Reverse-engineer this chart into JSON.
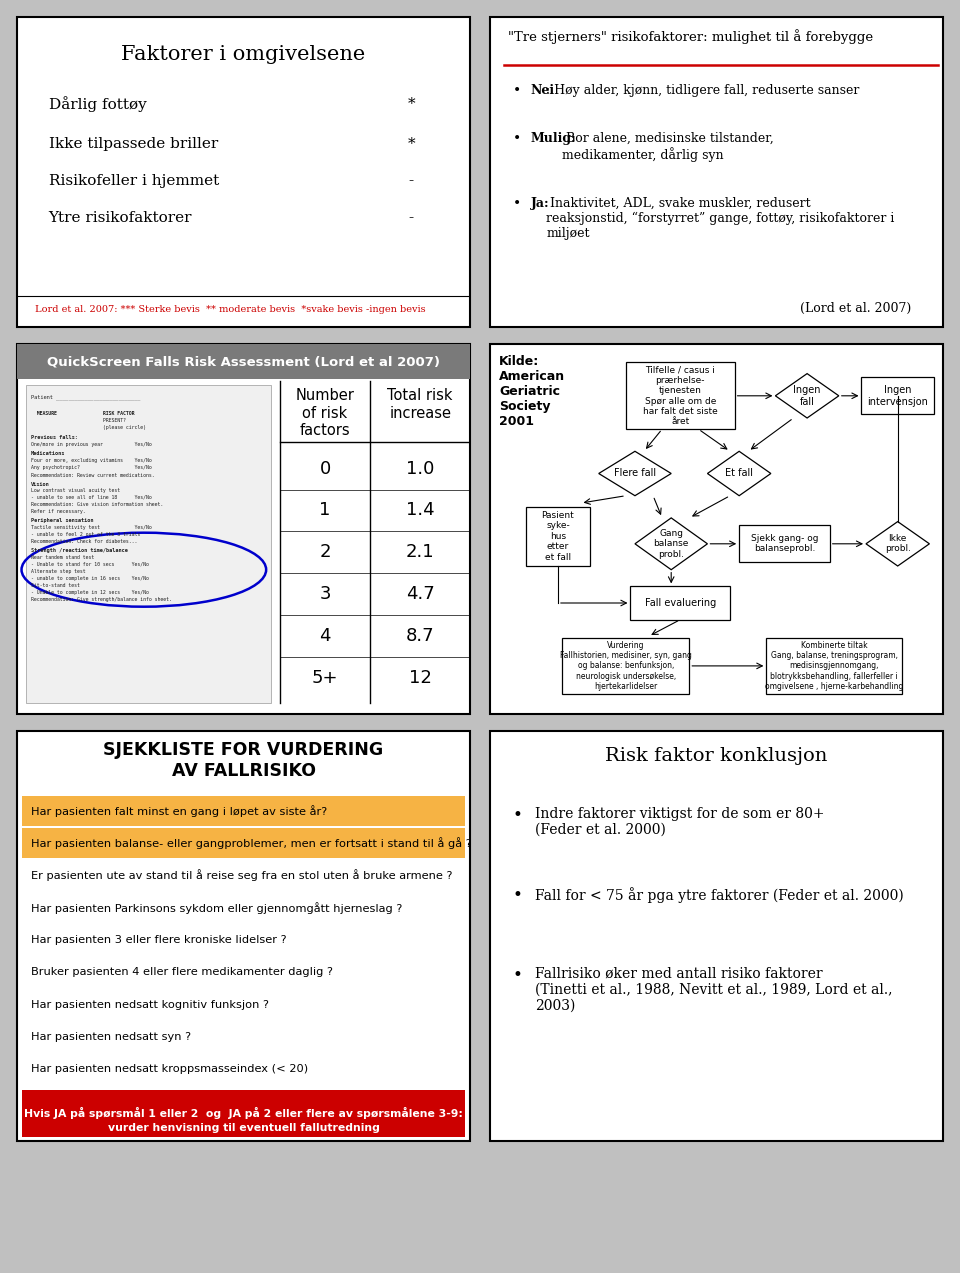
{
  "slide_bg": "#c0c0c0",
  "panel_bg": "#ffffff",
  "border_color": "#000000",
  "panel1_title": "Faktorer i omgivelsene",
  "panel1_items": [
    [
      "Dårlig fottøy",
      "*"
    ],
    [
      "Ikke tilpassede briller",
      "*"
    ],
    [
      "Risikofeller i hjemmet",
      "-"
    ],
    [
      "Ytre risikofaktorer",
      "-"
    ]
  ],
  "panel1_footer": "Lord et al. 2007: *** Sterke bevis  ** moderate bevis  *svake bevis -ingen bevis",
  "panel2_title": "\"Tre stjerners\" risikofaktorer: mulighet til å forebygge",
  "panel2_underline_color": "#cc0000",
  "panel2_bullets": [
    {
      "bold": "Nei",
      "rest": ": Høy alder, kjønn, tidligere fall, reduserte sanser"
    },
    {
      "bold": "Mulig:",
      "rest": " Bor alene, medisinske tilstander,\nmedikamenter, dårlig syn"
    },
    {
      "bold": "Ja:",
      "rest": " Inaktivitet, ADL, svake muskler, redusert\nreaksjonstid, “forstyrret” gange, fottøy, risikofaktorer i\nmiljøet"
    }
  ],
  "panel2_footer": "(Lord et al. 2007)",
  "panel3_title": "QuickScreen Falls Risk Assessment (Lord et al 2007)",
  "panel3_title_bg": "#7a7a7a",
  "panel3_col1_header": "Number\nof risk\nfactors",
  "panel3_col2_header": "Total risk\nincrease",
  "panel3_rows": [
    [
      "0",
      "1.0"
    ],
    [
      "1",
      "1.4"
    ],
    [
      "2",
      "2.1"
    ],
    [
      "3",
      "4.7"
    ],
    [
      "4",
      "8.7"
    ],
    [
      "5+",
      "12"
    ]
  ],
  "panel4_source": "Kilde:\nAmerican\nGeriatric\nSociety\n2001",
  "panel5_title": "SJEKKLISTE FOR VURDERING\nAV FALLRISIKO",
  "panel5_items": [
    {
      "text": "Har pasienten falt minst en gang i løpet av siste år?",
      "highlight": "orange"
    },
    {
      "text": "Har pasienten balanse- eller gangproblemer, men er fortsatt i stand til å gå ?",
      "highlight": "orange"
    },
    {
      "text": "Er pasienten ute av stand til å reise seg fra en stol uten å bruke armene ?",
      "highlight": "none"
    },
    {
      "text": "Har pasienten Parkinsons sykdom eller gjennomgått hjerneslag ?",
      "highlight": "none"
    },
    {
      "text": "Har pasienten 3 eller flere kroniske lidelser ?",
      "highlight": "none"
    },
    {
      "text": "Bruker pasienten 4 eller flere medikamenter daglig ?",
      "highlight": "none"
    },
    {
      "text": "Har pasienten nedsatt kognitiv funksjon ?",
      "highlight": "none"
    },
    {
      "text": "Har pasienten nedsatt syn ?",
      "highlight": "none"
    },
    {
      "text": "Har pasienten nedsatt kroppsmasseindex (< 20)",
      "highlight": "none"
    }
  ],
  "panel5_footer_line1": "Hvis JA på spørsmål 1 eller 2  og  JA på 2 eller flere av spørsmålene 3-9:",
  "panel5_footer_line2": "vurder henvisning til eventuell fallutredning",
  "panel5_footer_bg": "#cc0000",
  "panel6_title": "Risk faktor konklusjon",
  "panel6_bullets": [
    "Indre faktorer viktigst for de som er 80+\n(Feder et al. 2000)",
    "Fall for < 75 år pga ytre faktorer (Feder et al. 2000)",
    "Fallrisiko øker med antall risiko faktorer\n(Tinetti et al., 1988, Nevitt et al., 1989, Lord et al.,\n2003)"
  ]
}
